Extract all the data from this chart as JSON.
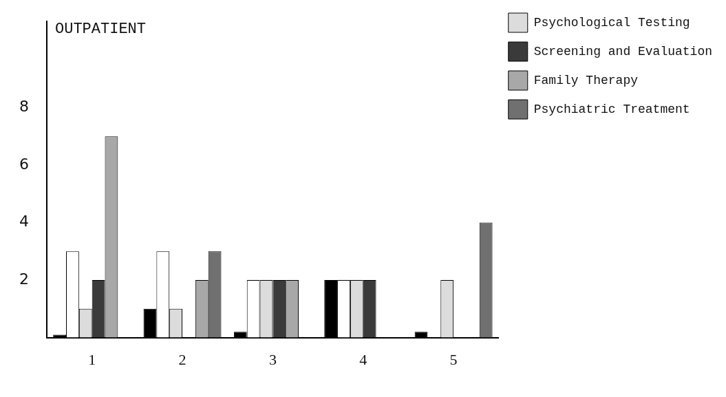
{
  "chart_data": {
    "type": "bar",
    "title": "OUTPATIENT",
    "categories": [
      "1",
      "2",
      "3",
      "4",
      "5"
    ],
    "series": [
      {
        "color": "#000000",
        "values": [
          0.1,
          1,
          0.2,
          2,
          0.2
        ]
      },
      {
        "color": "#ffffff",
        "values": [
          3,
          3,
          2,
          2,
          null
        ]
      },
      {
        "name": "Psychological Testing",
        "color": "#dcdcdc",
        "values": [
          1,
          1,
          2,
          2,
          2
        ]
      },
      {
        "name": "Screening and Evaluation",
        "color": "#3a3a3a",
        "values": [
          2,
          null,
          2,
          2,
          null
        ]
      },
      {
        "name": "Family Therapy",
        "color": "#a8a8a8",
        "values": [
          7,
          2,
          2,
          null,
          null
        ]
      },
      {
        "name": "Psychiatric Treatment",
        "color": "#707070",
        "values": [
          null,
          3,
          null,
          null,
          4
        ]
      }
    ],
    "ylim": [
      0,
      11
    ],
    "yticks": [
      2,
      4,
      6,
      8
    ],
    "grid": false,
    "legend": "top right"
  }
}
